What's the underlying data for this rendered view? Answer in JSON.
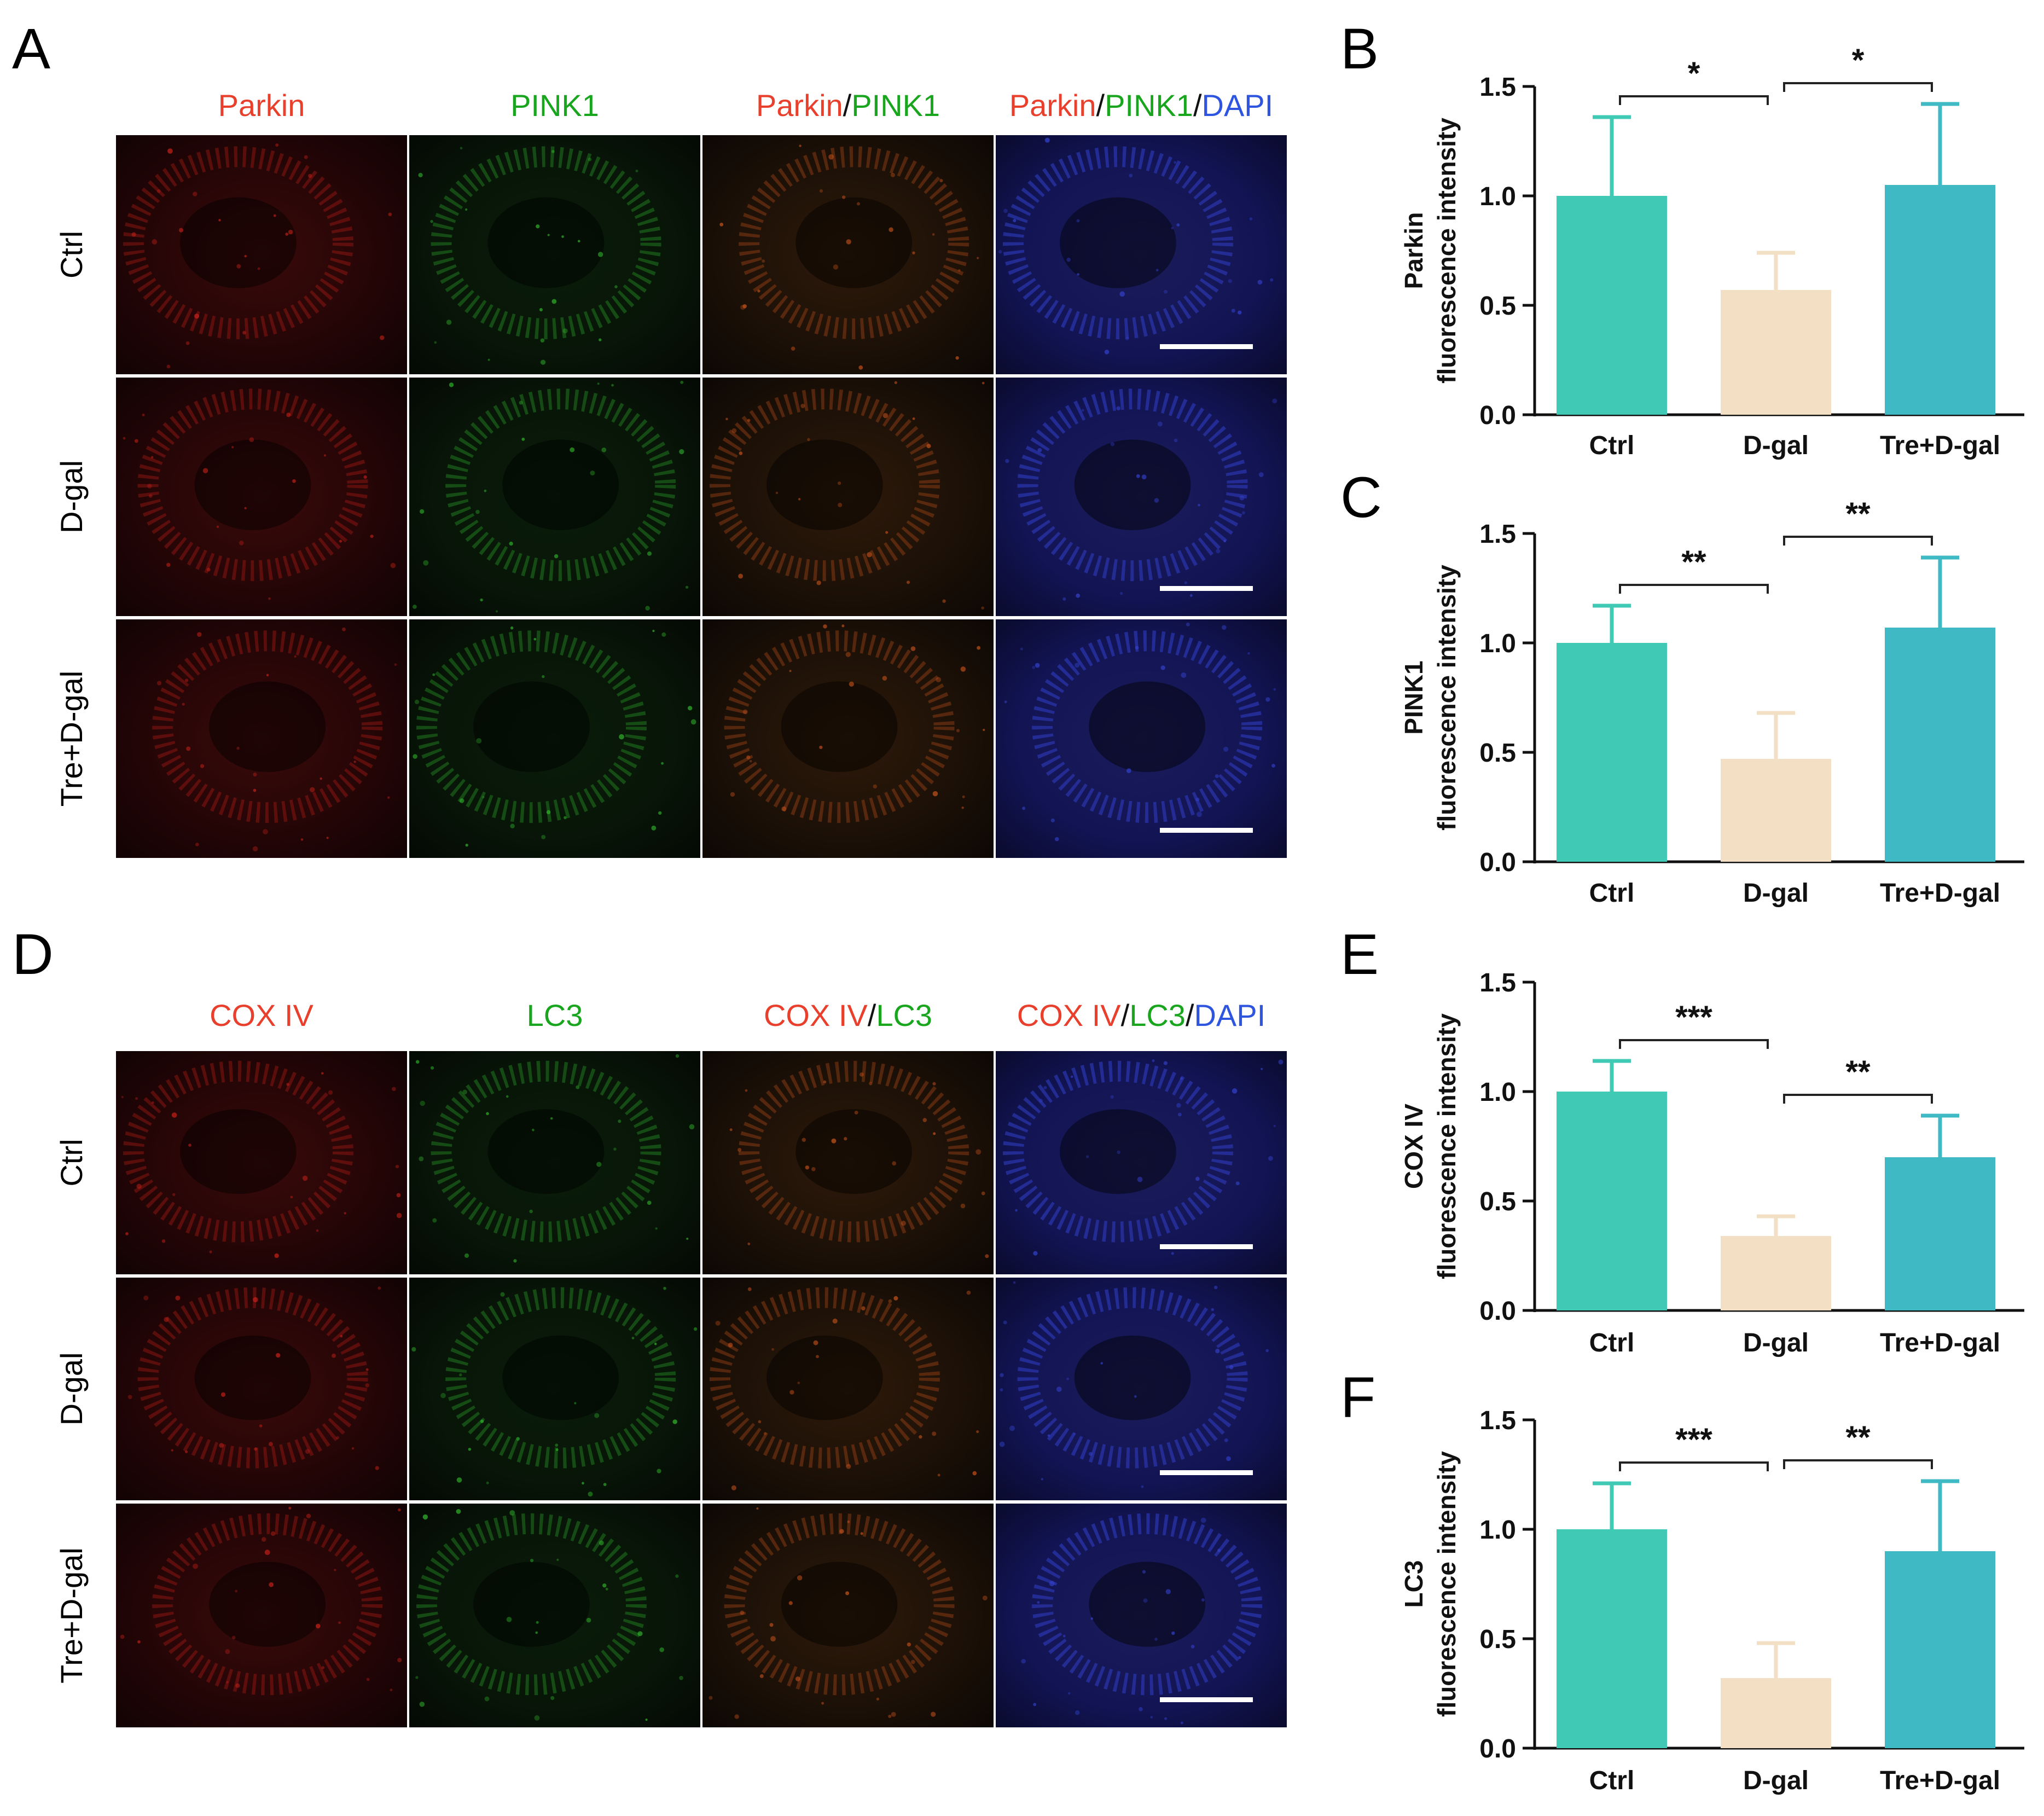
{
  "colors": {
    "red": "#e8402c",
    "green": "#19a51d",
    "blue": "#2e55e0",
    "slash": "#111111",
    "ctrl": "#40c9b5",
    "dgal": "#f2dfc4",
    "tre": "#3fb9c3",
    "image_bg": "#0a0608"
  },
  "panels": {
    "A": {
      "letter": "A",
      "columns": [
        {
          "parts": [
            {
              "text": "Parkin",
              "color": "red"
            }
          ]
        },
        {
          "parts": [
            {
              "text": "PINK1",
              "color": "green"
            }
          ]
        },
        {
          "parts": [
            {
              "text": "Parkin",
              "color": "red"
            },
            {
              "text": "/",
              "color": "slash"
            },
            {
              "text": "PINK1",
              "color": "green"
            }
          ]
        },
        {
          "parts": [
            {
              "text": "Parkin",
              "color": "red"
            },
            {
              "text": "/",
              "color": "slash"
            },
            {
              "text": "PINK1",
              "color": "green"
            },
            {
              "text": "/",
              "color": "slash"
            },
            {
              "text": "DAPI",
              "color": "blue"
            }
          ]
        }
      ],
      "rows": [
        "Ctrl",
        "D-gal",
        "Tre+D-gal"
      ],
      "stains": [
        "red",
        "green",
        "merge",
        "dapi"
      ]
    },
    "D": {
      "letter": "D",
      "columns": [
        {
          "parts": [
            {
              "text": "COX IV",
              "color": "red"
            }
          ]
        },
        {
          "parts": [
            {
              "text": "LC3",
              "color": "green"
            }
          ]
        },
        {
          "parts": [
            {
              "text": "COX IV",
              "color": "red"
            },
            {
              "text": "/",
              "color": "slash"
            },
            {
              "text": "LC3",
              "color": "green"
            }
          ]
        },
        {
          "parts": [
            {
              "text": "COX IV",
              "color": "red"
            },
            {
              "text": "/",
              "color": "slash"
            },
            {
              "text": "LC3",
              "color": "green"
            },
            {
              "text": "/",
              "color": "slash"
            },
            {
              "text": "DAPI",
              "color": "blue"
            }
          ]
        }
      ],
      "rows": [
        "Ctrl",
        "D-gal",
        "Tre+D-gal"
      ],
      "stains": [
        "red",
        "green",
        "merge",
        "dapi"
      ]
    }
  },
  "chart_data": [
    {
      "panel": "B",
      "type": "bar",
      "categories": [
        "Ctrl",
        "D-gal",
        "Tre+D-gal"
      ],
      "values": [
        1.0,
        0.57,
        1.05
      ],
      "errors": [
        0.36,
        0.17,
        0.37
      ],
      "ylabel": [
        "Parkin",
        "fluorescence intensity"
      ],
      "ylim": [
        0,
        1.5
      ],
      "yticks": [
        "0.0",
        "0.5",
        "1.0",
        "1.5"
      ],
      "significance": [
        {
          "from": 0,
          "to": 1,
          "label": "*"
        },
        {
          "from": 1,
          "to": 2,
          "label": "*"
        }
      ]
    },
    {
      "panel": "C",
      "type": "bar",
      "categories": [
        "Ctrl",
        "D-gal",
        "Tre+D-gal"
      ],
      "values": [
        1.0,
        0.47,
        1.07
      ],
      "errors": [
        0.17,
        0.21,
        0.32
      ],
      "ylabel": [
        "PINK1",
        "fluorescence intensity"
      ],
      "ylim": [
        0,
        1.5
      ],
      "yticks": [
        "0.0",
        "0.5",
        "1.0",
        "1.5"
      ],
      "significance": [
        {
          "from": 0,
          "to": 1,
          "label": "**"
        },
        {
          "from": 1,
          "to": 2,
          "label": "**"
        }
      ]
    },
    {
      "panel": "E",
      "type": "bar",
      "categories": [
        "Ctrl",
        "D-gal",
        "Tre+D-gal"
      ],
      "values": [
        1.0,
        0.34,
        0.7
      ],
      "errors": [
        0.14,
        0.09,
        0.19
      ],
      "ylabel": [
        "COX IV",
        "fluorescence intensity"
      ],
      "ylim": [
        0,
        1.5
      ],
      "yticks": [
        "0.0",
        "0.5",
        "1.0",
        "1.5"
      ],
      "significance": [
        {
          "from": 0,
          "to": 1,
          "label": "***"
        },
        {
          "from": 1,
          "to": 2,
          "label": "**"
        }
      ]
    },
    {
      "panel": "F",
      "type": "bar",
      "categories": [
        "Ctrl",
        "D-gal",
        "Tre+D-gal"
      ],
      "values": [
        1.0,
        0.32,
        0.9
      ],
      "errors": [
        0.21,
        0.16,
        0.32
      ],
      "ylabel": [
        "LC3",
        "fluorescence intensity"
      ],
      "ylim": [
        0,
        1.5
      ],
      "yticks": [
        "0.0",
        "0.5",
        "1.0",
        "1.5"
      ],
      "significance": [
        {
          "from": 0,
          "to": 1,
          "label": "***"
        },
        {
          "from": 1,
          "to": 2,
          "label": "**"
        }
      ]
    }
  ]
}
